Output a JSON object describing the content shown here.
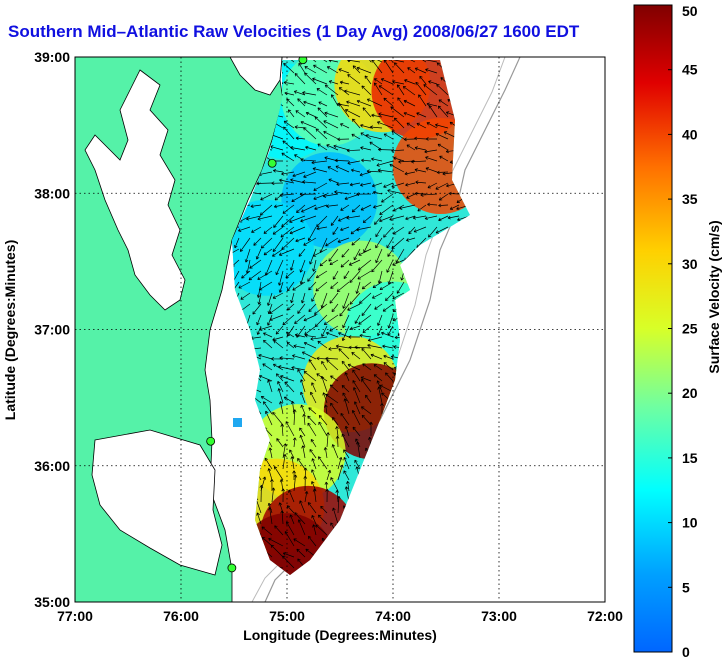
{
  "title": "Southern Mid–Atlantic Raw Velocities (1 Day Avg) 2008/06/27 1600 EDT",
  "map": {
    "x_axis": {
      "label": "Longitude (Degrees:Minutes)",
      "ticks": [
        "77:00",
        "76:00",
        "75:00",
        "74:00",
        "73:00",
        "72:00"
      ],
      "range": [
        -77,
        -72
      ]
    },
    "y_axis": {
      "label": "Latitude (Degrees:Minutes)",
      "ticks": [
        "39:00",
        "38:00",
        "37:00",
        "36:00",
        "35:00"
      ],
      "range": [
        35,
        39
      ]
    },
    "grid": "dotted",
    "land_color": "#55f2a8",
    "water_color": "#ffffff"
  },
  "colorbar": {
    "label": "Surface Velocity (cm/s)",
    "ticks": [
      "50",
      "45",
      "40",
      "35",
      "30",
      "25",
      "20",
      "15",
      "10",
      "5",
      "0"
    ],
    "range": [
      0,
      50
    ],
    "colormap": "jet"
  },
  "chart_data": {
    "type": "heatmap",
    "title": "Southern Mid–Atlantic Raw Velocities (1 Day Avg) 2008/06/27 1600 EDT",
    "xlabel": "Longitude (Degrees:Minutes)",
    "ylabel": "Latitude (Degrees:Minutes)",
    "xlim": [
      -77,
      -72
    ],
    "ylim": [
      35,
      39
    ],
    "value_label": "Surface Velocity (cm/s)",
    "value_range": [
      0,
      50
    ],
    "regions": [
      {
        "lon": -75.0,
        "lat": 38.6,
        "speed": 12
      },
      {
        "lon": -74.6,
        "lat": 38.7,
        "speed": 18
      },
      {
        "lon": -74.1,
        "lat": 38.8,
        "speed": 30
      },
      {
        "lon": -73.75,
        "lat": 38.75,
        "speed": 42
      },
      {
        "lon": -73.55,
        "lat": 38.2,
        "speed": 40
      },
      {
        "lon": -74.6,
        "lat": 37.95,
        "speed": 8
      },
      {
        "lon": -75.2,
        "lat": 37.6,
        "speed": 10
      },
      {
        "lon": -74.3,
        "lat": 37.3,
        "speed": 22
      },
      {
        "lon": -74.0,
        "lat": 37.0,
        "speed": 15
      },
      {
        "lon": -74.4,
        "lat": 36.6,
        "speed": 28
      },
      {
        "lon": -74.2,
        "lat": 36.4,
        "speed": 50
      },
      {
        "lon": -74.9,
        "lat": 36.1,
        "speed": 25
      },
      {
        "lon": -75.1,
        "lat": 35.7,
        "speed": 30
      },
      {
        "lon": -74.8,
        "lat": 35.5,
        "speed": 48
      },
      {
        "lon": -75.0,
        "lat": 35.3,
        "speed": 50
      }
    ],
    "stations": [
      {
        "lon": -74.85,
        "lat": 38.98
      },
      {
        "lon": -75.14,
        "lat": 38.22
      },
      {
        "lon": -75.72,
        "lat": 36.18
      },
      {
        "lon": -75.52,
        "lat": 35.25
      }
    ]
  }
}
